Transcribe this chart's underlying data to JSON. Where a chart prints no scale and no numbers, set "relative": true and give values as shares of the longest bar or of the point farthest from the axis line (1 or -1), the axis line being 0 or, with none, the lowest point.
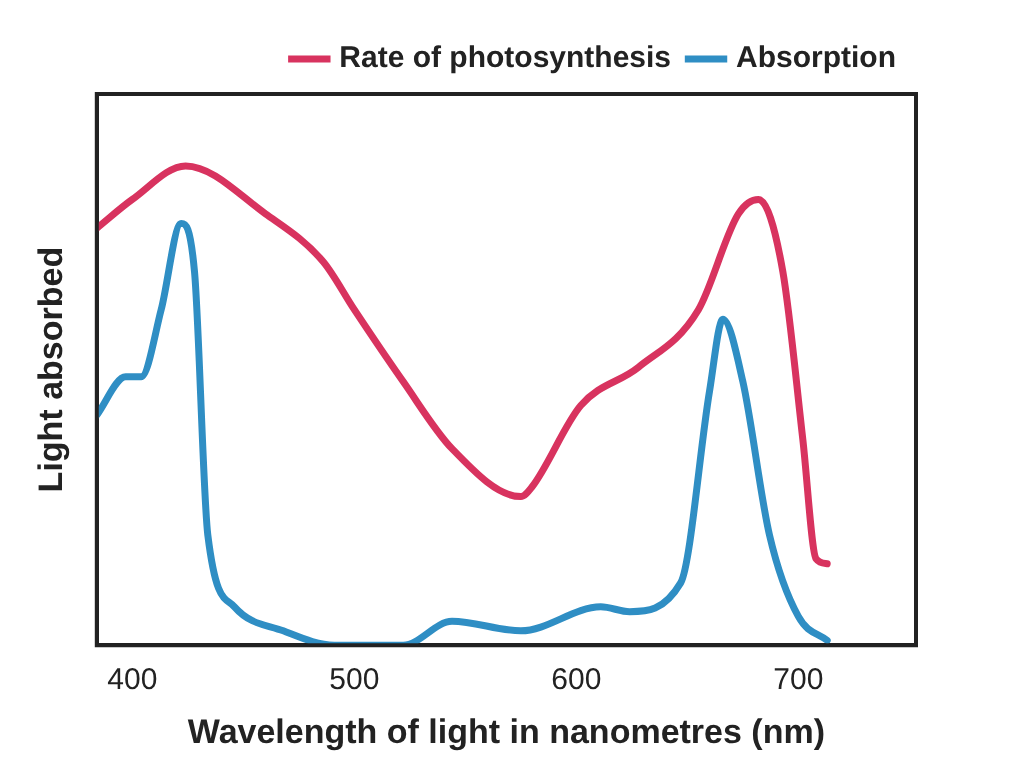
{
  "chart_data": {
    "type": "line",
    "relative": true,
    "xlabel": "Wavelength of light in nanometres (nm)",
    "ylabel": "Light absorbed",
    "xlim": [
      384,
      753
    ],
    "xticks": [
      400,
      500,
      600,
      700
    ],
    "grid": false,
    "legend": "top right",
    "marker": "none",
    "line_style": "solid",
    "series": [
      {
        "name": "Rate of photosynthesis",
        "color": "#d8335f",
        "x": [
          384,
          400,
          424,
          460,
          486,
          500,
          522,
          544,
          575,
          580,
          602,
          628,
          655,
          673,
          682,
          693,
          702,
          708,
          713
        ],
        "values": [
          0.87,
          0.93,
          1.0,
          0.9,
          0.8,
          0.7,
          0.55,
          0.41,
          0.31,
          0.33,
          0.5,
          0.58,
          0.7,
          0.9,
          0.93,
          0.78,
          0.43,
          0.18,
          0.17
        ]
      },
      {
        "name": "Absorption",
        "color": "#2f8ec4",
        "x": [
          384,
          397,
          404,
          413,
          422,
          428,
          434,
          446,
          468,
          491,
          522,
          544,
          575,
          611,
          624,
          647,
          660,
          666,
          675,
          687,
          700,
          713
        ],
        "values": [
          0.48,
          0.56,
          0.56,
          0.7,
          0.88,
          0.78,
          0.23,
          0.08,
          0.03,
          0,
          0,
          0.05,
          0.03,
          0.08,
          0.07,
          0.13,
          0.53,
          0.68,
          0.55,
          0.23,
          0.06,
          0.01
        ]
      }
    ]
  }
}
